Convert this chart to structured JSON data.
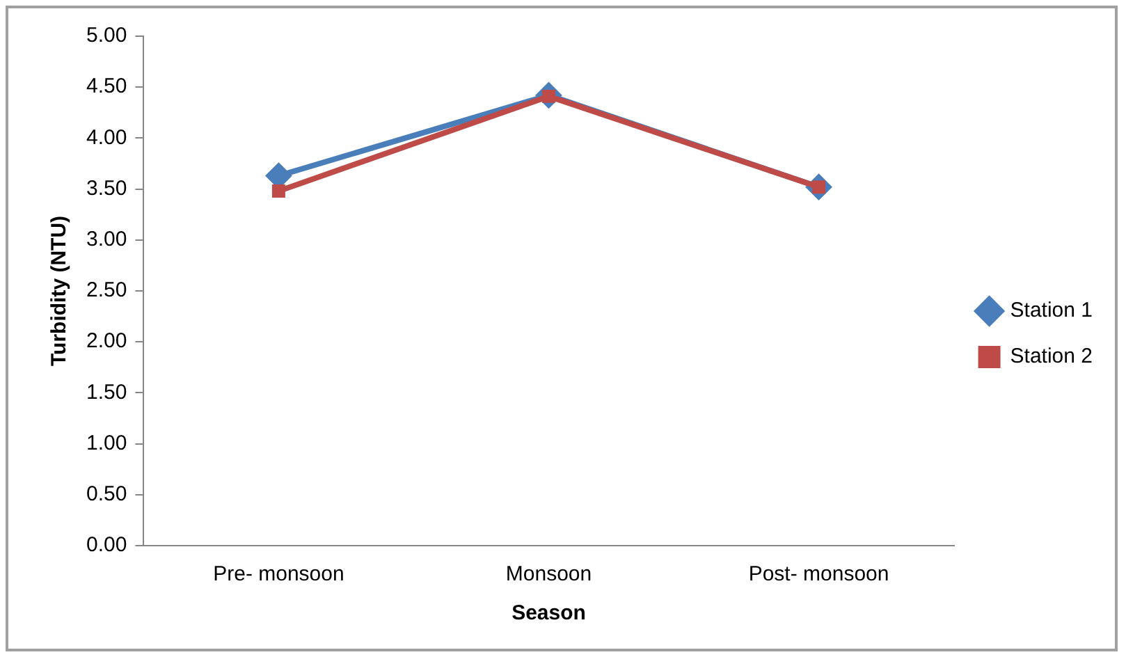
{
  "chart_data": {
    "type": "line",
    "xlabel": "Season",
    "ylabel": "Turbidity (NTU)",
    "categories": [
      "Pre- monsoon",
      "Monsoon",
      "Post- monsoon"
    ],
    "series": [
      {
        "name": "Station 1",
        "color": "#4a7ebb",
        "marker": "diamond",
        "values": [
          3.63,
          4.42,
          3.52
        ]
      },
      {
        "name": "Station 2",
        "color": "#be4b48",
        "marker": "square",
        "values": [
          3.48,
          4.41,
          3.52
        ]
      }
    ],
    "ylim": [
      0,
      5
    ],
    "yticks": [
      {
        "value": 0,
        "label": "0.00"
      },
      {
        "value": 0.5,
        "label": "0.50"
      },
      {
        "value": 1,
        "label": "1.00"
      },
      {
        "value": 1.5,
        "label": "1.50"
      },
      {
        "value": 2,
        "label": "2.00"
      },
      {
        "value": 2.5,
        "label": "2.50"
      },
      {
        "value": 3,
        "label": "3.00"
      },
      {
        "value": 3.5,
        "label": "3.50"
      },
      {
        "value": 4,
        "label": "4.00"
      },
      {
        "value": 4.5,
        "label": "4.50"
      },
      {
        "value": 5,
        "label": "5.00"
      }
    ],
    "grid": false,
    "legend": "right"
  }
}
